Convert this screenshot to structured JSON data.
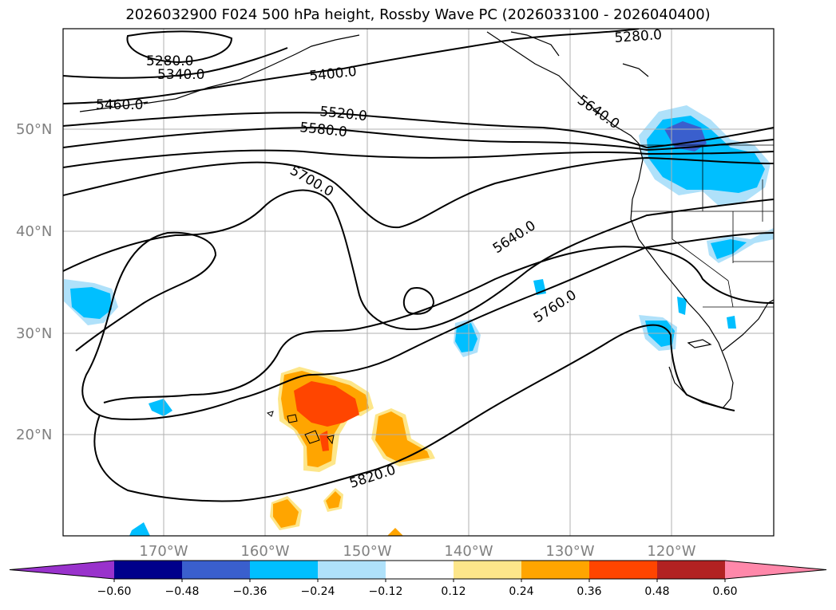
{
  "title": "2026032900 F024 500 hPa height, Rossby Wave PC (2026033100 - 2026040400)",
  "lat_labels": [
    "50°N",
    "40°N",
    "30°N",
    "20°N"
  ],
  "lon_labels": [
    "170°W",
    "160°W",
    "150°W",
    "140°W",
    "130°W",
    "120°W"
  ],
  "contour_labels": [
    "5280.0",
    "5340.0",
    "5280.0",
    "5400.0",
    "5460.0",
    "5520.0",
    "5580.0",
    "5640.0",
    "5700.0",
    "5640.0",
    "5760.0",
    "5820.0"
  ],
  "colorbar": {
    "ticks": [
      "−0.60",
      "−0.48",
      "−0.36",
      "−0.24",
      "−0.12",
      "0.12",
      "0.24",
      "0.36",
      "0.48",
      "0.60"
    ],
    "colors": [
      "#9932cc",
      "#00008b",
      "#3a5fcd",
      "#00bfff",
      "#afe1fa",
      "#ffffff",
      "#fde68a",
      "#ffa500",
      "#ff4500",
      "#b22222",
      "#ff88aa"
    ]
  },
  "map_colors": {
    "neg_light": "#afe1fa",
    "neg_mid": "#00bfff",
    "neg_dark": "#3a5fcd",
    "pos_light": "#fde68a",
    "pos_mid": "#ffa500",
    "pos_dark": "#ff4500"
  }
}
